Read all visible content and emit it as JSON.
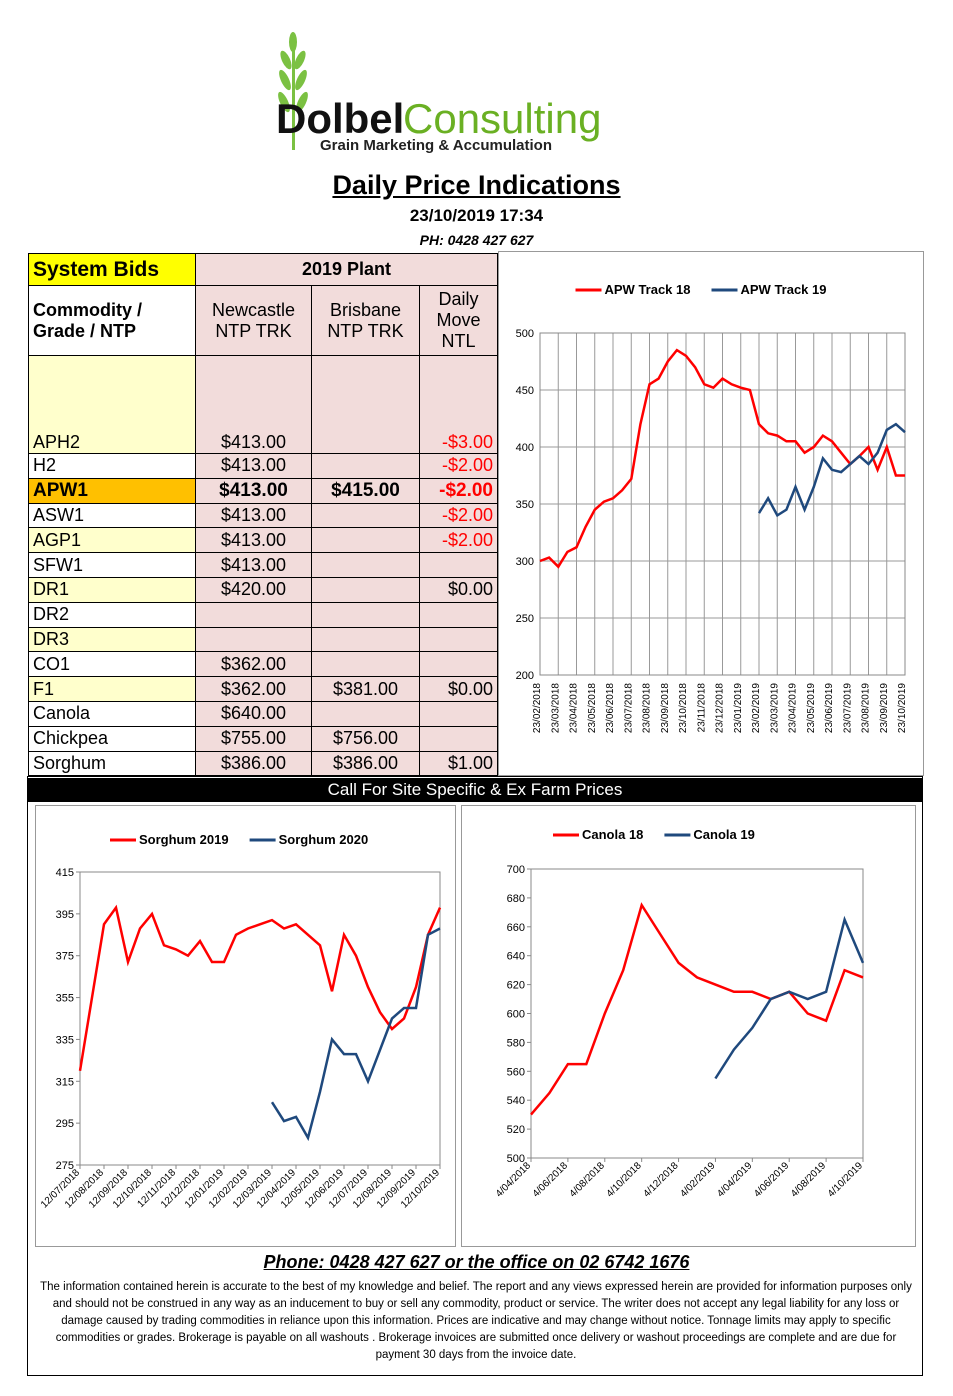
{
  "header": {
    "brand_dark": "Dolbel",
    "brand_light": "Consulting",
    "tagline": "Grain Marketing & Accumulation",
    "title": "Daily Price Indications",
    "datetime": "23/10/2019 17:34",
    "phone": "PH: 0428 427 627"
  },
  "table": {
    "header": [
      "System Bids",
      "2019 Plant"
    ],
    "columns": [
      "Commodity / Grade / NTP",
      "Newcastle NTP TRK",
      "Brisbane NTP TRK",
      "Daily Move NTL"
    ],
    "rows": [
      [
        "APH2",
        "$413.00",
        null,
        "-$3.00"
      ],
      [
        "H2",
        "$413.00",
        null,
        "-$2.00"
      ],
      [
        "APW1",
        "$413.00",
        "$415.00",
        "-$2.00"
      ],
      [
        "ASW1",
        "$413.00",
        null,
        "-$2.00"
      ],
      [
        "AGP1",
        "$413.00",
        null,
        "-$2.00"
      ],
      [
        "SFW1",
        "$413.00",
        null,
        null
      ],
      [
        "DR1",
        "$420.00",
        null,
        "$0.00"
      ],
      [
        "DR2",
        null,
        null,
        null
      ],
      [
        "DR3",
        null,
        null,
        null
      ],
      [
        "CO1",
        "$362.00",
        null,
        null
      ],
      [
        "F1",
        "$362.00",
        "$381.00",
        "$0.00"
      ],
      [
        "Canola",
        "$640.00",
        null,
        null
      ],
      [
        "Chickpea",
        "$755.00",
        "$756.00",
        null
      ],
      [
        "Sorghum",
        "$386.00",
        "$386.00",
        "$1.00"
      ]
    ]
  },
  "banner": "Call For Site Specific & Ex Farm Prices",
  "chart_data": [
    {
      "type": "line",
      "grid": true,
      "categories": [
        "23/02/2018",
        null,
        "23/03/2018",
        null,
        "23/04/2018",
        null,
        "23/05/2018",
        null,
        "23/06/2018",
        null,
        "23/07/2018",
        null,
        "23/08/2018",
        null,
        "23/09/2018",
        null,
        "23/10/2018",
        null,
        "23/11/2018",
        null,
        "23/12/2018",
        null,
        "23/01/2019",
        null,
        "23/02/2019",
        null,
        "23/03/2019",
        null,
        "23/04/2019",
        null,
        "23/05/2019",
        null,
        "23/06/2019",
        null,
        "23/07/2019",
        null,
        "23/08/2019",
        null,
        "23/09/2019",
        null,
        "23/10/2019"
      ],
      "ylim": [
        200,
        500
      ],
      "yticks": [
        200,
        250,
        300,
        350,
        400,
        450,
        500
      ],
      "series": [
        {
          "name": "APW Track 18",
          "color": "#ff0000",
          "values": [
            300,
            303,
            295,
            308,
            312,
            330,
            345,
            352,
            355,
            362,
            372,
            420,
            455,
            460,
            475,
            485,
            480,
            470,
            455,
            452,
            460,
            455,
            452,
            450,
            420,
            412,
            410,
            405,
            405,
            395,
            400,
            410,
            405,
            395,
            385,
            392,
            400,
            380,
            400,
            375,
            375
          ]
        },
        {
          "name": "APW Track 19",
          "color": "#1f497d",
          "values": [
            null,
            null,
            null,
            null,
            null,
            null,
            null,
            null,
            null,
            null,
            null,
            null,
            null,
            null,
            null,
            null,
            null,
            null,
            null,
            null,
            null,
            null,
            null,
            null,
            342,
            355,
            340,
            345,
            365,
            345,
            365,
            390,
            380,
            378,
            385,
            392,
            385,
            395,
            415,
            420,
            413
          ]
        }
      ]
    },
    {
      "type": "line",
      "grid": false,
      "categories": [
        "12/07/2018",
        null,
        "12/08/2018",
        null,
        "12/09/2018",
        null,
        "12/10/2018",
        null,
        "12/11/2018",
        null,
        "12/12/2018",
        null,
        "12/01/2019",
        null,
        "12/02/2019",
        null,
        "12/03/2019",
        null,
        "12/04/2019",
        null,
        "12/05/2019",
        null,
        "12/06/2019",
        null,
        "12/07/2019",
        null,
        "12/08/2019",
        null,
        "12/09/2019",
        null,
        "12/10/2019"
      ],
      "ylim": [
        275,
        415
      ],
      "yticks": [
        275,
        295,
        315,
        335,
        355,
        375,
        395,
        415
      ],
      "series": [
        {
          "name": "Sorghum 2019",
          "color": "#ff0000",
          "values": [
            320,
            355,
            390,
            398,
            372,
            388,
            395,
            380,
            378,
            375,
            382,
            372,
            372,
            385,
            388,
            390,
            392,
            388,
            390,
            385,
            380,
            358,
            385,
            375,
            360,
            348,
            340,
            345,
            360,
            385,
            398
          ]
        },
        {
          "name": "Sorghum 2020",
          "color": "#1f497d",
          "values": [
            null,
            null,
            null,
            null,
            null,
            null,
            null,
            null,
            null,
            null,
            null,
            null,
            null,
            null,
            null,
            null,
            305,
            296,
            298,
            288,
            310,
            335,
            328,
            328,
            315,
            330,
            345,
            350,
            350,
            385,
            388
          ]
        }
      ]
    },
    {
      "type": "line",
      "grid": false,
      "categories": [
        "4/04/2018",
        null,
        "4/06/2018",
        null,
        "4/08/2018",
        null,
        "4/10/2018",
        null,
        "4/12/2018",
        null,
        "4/02/2019",
        null,
        "4/04/2019",
        null,
        "4/06/2019",
        null,
        "4/08/2019",
        null,
        "4/10/2019"
      ],
      "ylim": [
        500,
        700
      ],
      "yticks": [
        500,
        520,
        540,
        560,
        580,
        600,
        620,
        640,
        660,
        680,
        700
      ],
      "series": [
        {
          "name": "Canola 18",
          "color": "#ff0000",
          "values": [
            530,
            545,
            565,
            565,
            600,
            630,
            675,
            655,
            635,
            625,
            620,
            615,
            615,
            610,
            615,
            600,
            595,
            630,
            625
          ]
        },
        {
          "name": "Canola 19",
          "color": "#1f497d",
          "values": [
            null,
            null,
            null,
            null,
            null,
            null,
            null,
            null,
            null,
            null,
            555,
            575,
            590,
            610,
            615,
            610,
            615,
            665,
            635
          ]
        }
      ]
    }
  ],
  "footer": {
    "phone": "Phone: 0428 427 627 or the office on 02 6742 1676",
    "disclaimer": "The information contained herein is accurate to the best of my knowledge and belief.  The report and any views expressed herein are provided for information purposes only and should not be construed in any way as an inducement to buy or sell any commodity, product or service. The writer does not accept any legal liability for any loss or damage caused by trading commodities in reliance upon this information. Prices are indicative and may change without notice. Tonnage limits may apply to specific commodities or grades.  Brokerage is payable on all washouts . Brokerage invoices are submitted once delivery or washout proceedings are complete and are due for payment 30 days from the invoice date."
  }
}
